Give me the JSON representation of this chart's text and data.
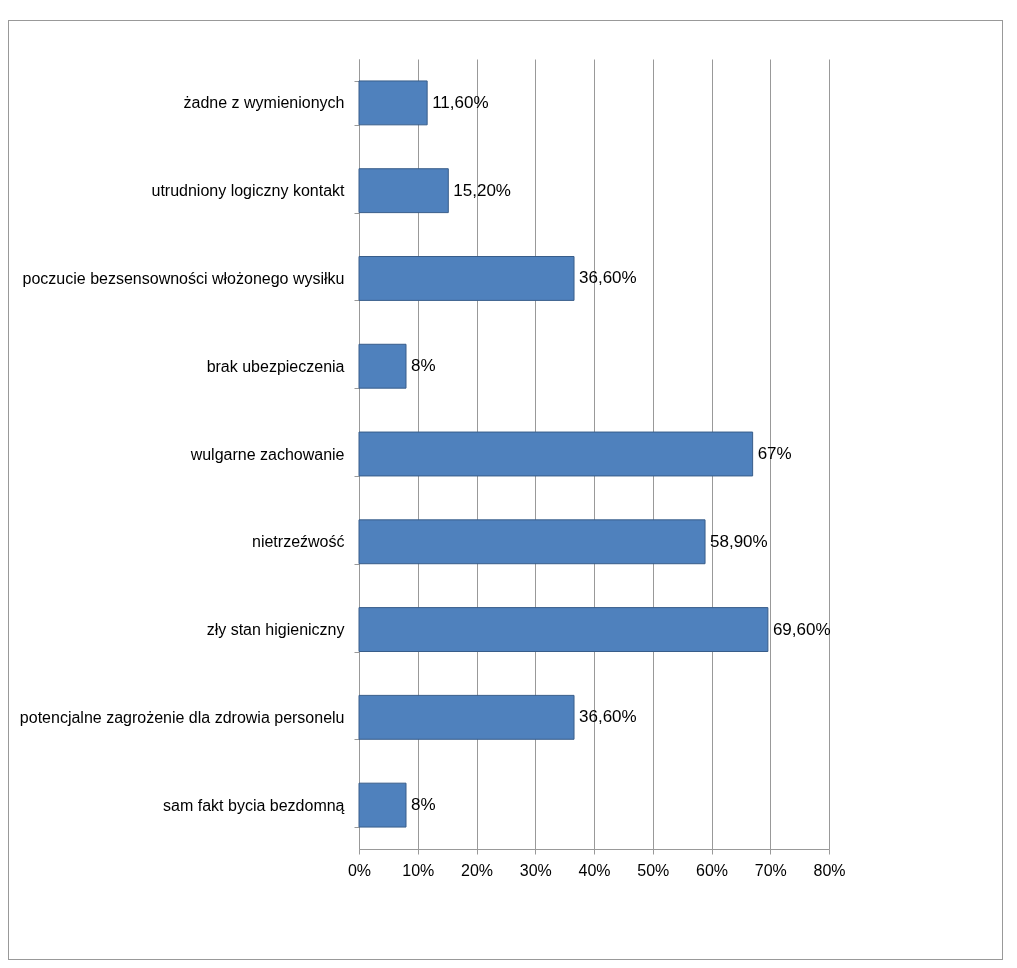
{
  "chart_data": {
    "type": "bar",
    "orientation": "horizontal",
    "categories": [
      "żadne z wymienionych",
      "utrudniony logiczny kontakt",
      "poczucie bezsensowności włożonego wysiłku",
      "brak ubezpieczenia",
      "wulgarne zachowanie",
      "nietrzeźwość",
      "zły stan higieniczny",
      "potencjalne zagrożenie dla zdrowia personelu",
      "sam fakt bycia bezdomną"
    ],
    "values": [
      11.6,
      15.2,
      36.6,
      8,
      67,
      58.9,
      69.6,
      36.6,
      8
    ],
    "value_labels": [
      "11,60%",
      "15,20%",
      "36,60%",
      "8%",
      "67%",
      "58,90%",
      "69,60%",
      "36,60%",
      "8%"
    ],
    "color": "#4f81bd",
    "xlim": [
      0,
      80
    ],
    "xticks": [
      {
        "value": 0,
        "label": "0%"
      },
      {
        "value": 10,
        "label": "10%"
      },
      {
        "value": 20,
        "label": "20%"
      },
      {
        "value": 30,
        "label": "30%"
      },
      {
        "value": 40,
        "label": "40%"
      },
      {
        "value": 50,
        "label": "50%"
      },
      {
        "value": 60,
        "label": "60%"
      },
      {
        "value": 70,
        "label": "70%"
      },
      {
        "value": 80,
        "label": "80%"
      }
    ],
    "grid": "x"
  }
}
